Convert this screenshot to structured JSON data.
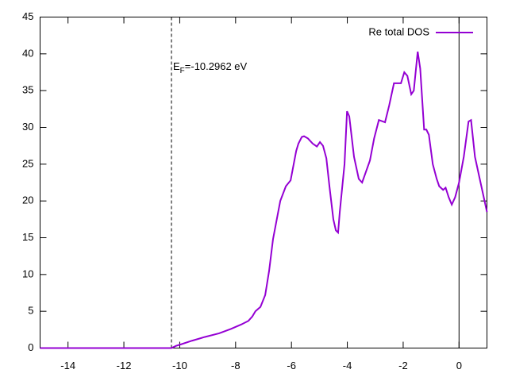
{
  "chart_data": {
    "type": "line",
    "annotation": {
      "base": "E",
      "subscript": "F",
      "text": "=-10.2962 eV"
    },
    "fermi_energy": -10.2962,
    "zero_line": 0,
    "legend": "top-right",
    "series": [
      {
        "name": "Re total DOS",
        "color": "#9400d3",
        "x": [
          -15,
          -10.3,
          -10.13,
          -9.96,
          -9.56,
          -9.11,
          -8.59,
          -8.17,
          -7.8,
          -7.54,
          -7.4,
          -7.29,
          -7.11,
          -6.94,
          -6.8,
          -6.66,
          -6.55,
          -6.4,
          -6.2,
          -6.03,
          -5.92,
          -5.83,
          -5.75,
          -5.63,
          -5.55,
          -5.41,
          -5.24,
          -5.09,
          -4.98,
          -4.87,
          -4.75,
          -4.64,
          -4.5,
          -4.41,
          -4.33,
          -4.27,
          -4.1,
          -4.01,
          -3.93,
          -3.76,
          -3.59,
          -3.47,
          -3.33,
          -3.19,
          -3.04,
          -2.87,
          -2.65,
          -2.5,
          -2.33,
          -2.08,
          -1.96,
          -1.85,
          -1.71,
          -1.62,
          -1.48,
          -1.39,
          -1.25,
          -1.17,
          -1.08,
          -0.94,
          -0.8,
          -0.71,
          -0.57,
          -0.48,
          -0.37,
          -0.26,
          -0.14,
          0,
          0.17,
          0.34,
          0.43,
          0.57,
          0.77,
          1.0
        ],
        "values": [
          0,
          0,
          0.3,
          0.5,
          1.0,
          1.5,
          2,
          2.6,
          3.2,
          3.7,
          4.3,
          5,
          5.6,
          7.2,
          10.5,
          14.8,
          17,
          20,
          22,
          22.8,
          25,
          26.8,
          27.8,
          28.7,
          28.8,
          28.5,
          27.8,
          27.4,
          28,
          27.5,
          25.8,
          22,
          17.5,
          16,
          15.7,
          18.5,
          25,
          32.2,
          31.5,
          26,
          23,
          22.5,
          24,
          25.5,
          28.5,
          31,
          30.7,
          33,
          36,
          36,
          37.5,
          37,
          34.5,
          35,
          40.3,
          38,
          29.7,
          29.7,
          29,
          25,
          23,
          22,
          21.5,
          21.8,
          20.5,
          19.5,
          20.5,
          22.5,
          26,
          30.8,
          31,
          26,
          22.5,
          18.5
        ]
      }
    ],
    "xlim": [
      -15,
      1
    ],
    "xticks": [
      -14,
      -12,
      -10,
      -8,
      -6,
      -4,
      -2,
      0
    ],
    "ylim": [
      0,
      45
    ],
    "yticks": [
      0,
      5,
      10,
      15,
      20,
      25,
      30,
      35,
      40,
      45
    ]
  }
}
